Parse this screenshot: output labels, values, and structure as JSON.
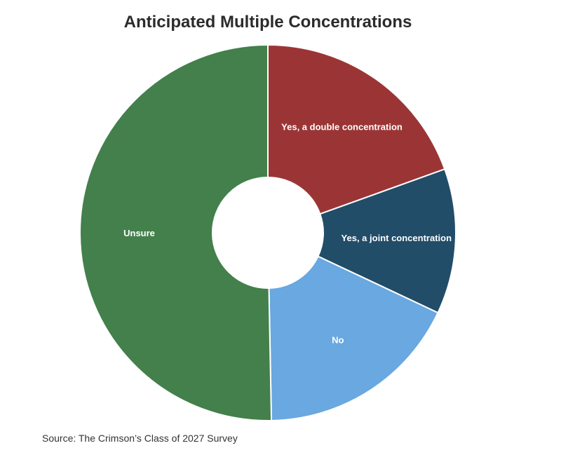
{
  "chart_data": {
    "type": "pie",
    "variant": "donut",
    "title": "Anticipated Multiple Concentrations",
    "slices": [
      {
        "label": "Yes, a double concentration",
        "value": 19.5,
        "color": "#9b3535"
      },
      {
        "label": "Yes, a joint concentration",
        "value": 12.5,
        "color": "#214d69"
      },
      {
        "label": "No",
        "value": 17.7,
        "color": "#69a8e0"
      },
      {
        "label": "Unsure",
        "value": 50.3,
        "color": "#43804b"
      }
    ],
    "start_angle": "top",
    "direction": "clockwise",
    "legend": "none"
  },
  "source": "Source: The Crimson’s Class of 2027 Survey"
}
